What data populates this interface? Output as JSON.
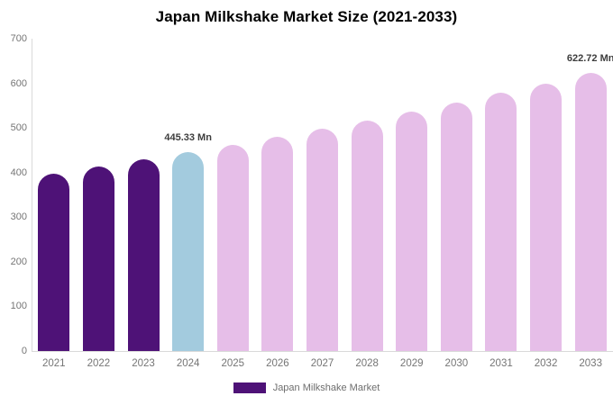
{
  "header": {
    "title": "Japan Milkshake Market Size (2021-2033)"
  },
  "chart_data": {
    "type": "bar",
    "title": "Japan Milkshake Market Size (2021-2033)",
    "categories": [
      "2021",
      "2022",
      "2023",
      "2024",
      "2025",
      "2026",
      "2027",
      "2028",
      "2029",
      "2030",
      "2031",
      "2032",
      "2033"
    ],
    "values": [
      398.2,
      413.4,
      429.0,
      445.33,
      462.2,
      479.8,
      498.0,
      516.9,
      536.5,
      556.9,
      578.0,
      600.0,
      622.72
    ],
    "unit": "Mn",
    "xlabel": "",
    "ylabel": "",
    "ylim": [
      0,
      700
    ],
    "yticks": [
      0,
      100,
      200,
      300,
      400,
      500,
      600,
      700
    ],
    "grid": false,
    "bar_roles": [
      "historical",
      "historical",
      "historical",
      "current",
      "forecast",
      "forecast",
      "forecast",
      "forecast",
      "forecast",
      "forecast",
      "forecast",
      "forecast",
      "forecast"
    ],
    "colors": {
      "historical": "#4E1277",
      "current": "#A3CBDE",
      "forecast": "#E6BEE8"
    },
    "axis_line_color": "#d9d9d9",
    "tick_label_color": "#757575",
    "annotations": [
      {
        "category": "2024",
        "text": "445.33 Mn"
      },
      {
        "category": "2033",
        "text": "622.72 Mn"
      }
    ],
    "legend": {
      "label": "Japan Milkshake Market",
      "swatch_color": "#4E1277",
      "position": "bottom"
    }
  }
}
